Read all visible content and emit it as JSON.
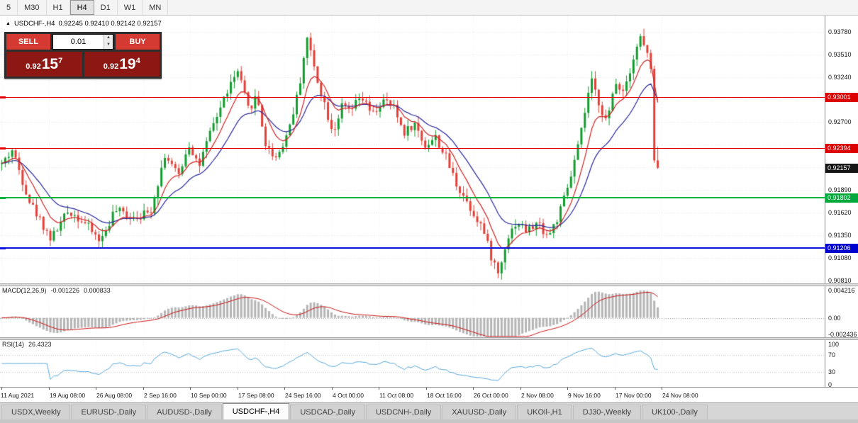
{
  "toolbar": {
    "timeframes": [
      "5",
      "M30",
      "H1",
      "H4",
      "D1",
      "W1",
      "MN"
    ],
    "active": "H4"
  },
  "chart": {
    "title_symbol": "USDCHF-,H4",
    "title_ohlc": "0.92245 0.92410 0.92142 0.92157"
  },
  "trade_panel": {
    "sell_label": "SELL",
    "buy_label": "BUY",
    "volume": "0.01",
    "sell_price": {
      "small": "0.92",
      "big": "15",
      "sup": "7"
    },
    "buy_price": {
      "small": "0.92",
      "big": "19",
      "sup": "4"
    }
  },
  "price_axis": {
    "grid_prices": [
      0.9378,
      0.9351,
      0.9324,
      0.9297,
      0.927,
      0.9243,
      0.9216,
      0.9189,
      0.9162,
      0.9135,
      0.9108,
      0.9081
    ],
    "ticks": [
      {
        "label": "0.93780",
        "price": 0.9378
      },
      {
        "label": "0.93510",
        "price": 0.9351
      },
      {
        "label": "0.93240",
        "price": 0.9324
      },
      {
        "label": "0.92700",
        "price": 0.927
      },
      {
        "label": "0.91890",
        "price": 0.9189
      },
      {
        "label": "0.91620",
        "price": 0.9162
      },
      {
        "label": "0.91350",
        "price": 0.9135
      },
      {
        "label": "0.91080",
        "price": 0.9108
      },
      {
        "label": "0.90810",
        "price": 0.9081
      }
    ],
    "badges": [
      {
        "label": "0.93001",
        "price": 0.93001,
        "bg": "#dd0000"
      },
      {
        "label": "0.92394",
        "price": 0.92394,
        "bg": "#dd0000"
      },
      {
        "label": "0.92157",
        "price": 0.92157,
        "bg": "#161616"
      },
      {
        "label": "0.91802",
        "price": 0.91802,
        "bg": "#00a93c"
      },
      {
        "label": "0.91206",
        "price": 0.91206,
        "bg": "#0000cf"
      }
    ]
  },
  "hlines": [
    {
      "price": 0.93001,
      "color": "#e60000",
      "thickness": 1
    },
    {
      "price": 0.92394,
      "color": "#e60000",
      "thickness": 1
    },
    {
      "price": 0.91802,
      "color": "#00b33c",
      "thickness": 2
    },
    {
      "price": 0.91206,
      "color": "#0f0fe0",
      "thickness": 2
    }
  ],
  "time_axis": [
    "11 Aug 2021",
    "19 Aug 08:00",
    "26 Aug 08:00",
    "2 Sep 16:00",
    "10 Sep 00:00",
    "17 Sep 08:00",
    "24 Sep 16:00",
    "4 Oct 00:00",
    "11 Oct 08:00",
    "18 Oct 16:00",
    "26 Oct 00:00",
    "2 Nov 08:00",
    "9 Nov 16:00",
    "17 Nov 00:00",
    "24 Nov 08:00"
  ],
  "macd": {
    "label": "MACD(12,26,9)",
    "value1": "-0.001226",
    "value2": "0.000833",
    "axis": [
      {
        "label": "0.004216",
        "value": 0.004216
      },
      {
        "label": "0.00",
        "value": 0
      },
      {
        "label": "-0.002436",
        "value": -0.002436
      }
    ],
    "range": {
      "min": -0.002436,
      "max": 0.004216
    }
  },
  "rsi": {
    "label": "RSI(14)",
    "value": "26.4323",
    "axis": [
      {
        "label": "100",
        "value": 100
      },
      {
        "label": "70",
        "value": 70
      },
      {
        "label": "30",
        "value": 30
      },
      {
        "label": "0",
        "value": 0
      }
    ],
    "levels": [
      70,
      30
    ]
  },
  "tabs": [
    {
      "label": "USDX,Weekly",
      "active": false
    },
    {
      "label": "EURUSD-,Daily",
      "active": false
    },
    {
      "label": "AUDUSD-,Daily",
      "active": false
    },
    {
      "label": "USDCHF-,H4",
      "active": true
    },
    {
      "label": "USDCAD-,Daily",
      "active": false
    },
    {
      "label": "USDCNH-,Daily",
      "active": false
    },
    {
      "label": "XAUUSD-,Daily",
      "active": false
    },
    {
      "label": "UKOil-,H1",
      "active": false
    },
    {
      "label": "DJ30-,Weekly",
      "active": false
    },
    {
      "label": "UK100-,Daily",
      "active": false
    }
  ],
  "colors": {
    "bull": "#129b2e",
    "bear": "#e04038",
    "ma_fast": "#cf2222",
    "ma_slow": "#26269c",
    "macd_hist": "#b4b4b4",
    "macd_signal": "#cc1111",
    "rsi_line": "#58a7da",
    "grid": "#e2e2e2",
    "vgrid": "#ededed"
  },
  "chart_data": {
    "type": "candlestick",
    "symbol": "USDCHF-",
    "timeframe": "H4",
    "ohlc_current": {
      "open": 0.92245,
      "high": 0.9241,
      "low": 0.92142,
      "close": 0.92157
    },
    "price_range": {
      "min": 0.9078,
      "max": 0.9397
    },
    "candle_count": 190,
    "waypoints": [
      [
        0,
        0.922
      ],
      [
        0.016,
        0.9237
      ],
      [
        0.043,
        0.9175
      ],
      [
        0.075,
        0.9131
      ],
      [
        0.102,
        0.9165
      ],
      [
        0.124,
        0.9152
      ],
      [
        0.151,
        0.9128
      ],
      [
        0.172,
        0.9165
      ],
      [
        0.199,
        0.9158
      ],
      [
        0.226,
        0.9162
      ],
      [
        0.249,
        0.9232
      ],
      [
        0.269,
        0.9205
      ],
      [
        0.285,
        0.9245
      ],
      [
        0.301,
        0.9218
      ],
      [
        0.323,
        0.9268
      ],
      [
        0.344,
        0.9308
      ],
      [
        0.36,
        0.933
      ],
      [
        0.376,
        0.9285
      ],
      [
        0.389,
        0.9302
      ],
      [
        0.403,
        0.924
      ],
      [
        0.419,
        0.9228
      ],
      [
        0.435,
        0.9256
      ],
      [
        0.452,
        0.9305
      ],
      [
        0.465,
        0.9372
      ],
      [
        0.478,
        0.933
      ],
      [
        0.489,
        0.93
      ],
      [
        0.505,
        0.9258
      ],
      [
        0.518,
        0.9288
      ],
      [
        0.532,
        0.9283
      ],
      [
        0.548,
        0.93
      ],
      [
        0.565,
        0.9278
      ],
      [
        0.581,
        0.9295
      ],
      [
        0.597,
        0.9288
      ],
      [
        0.613,
        0.9258
      ],
      [
        0.629,
        0.9268
      ],
      [
        0.645,
        0.9242
      ],
      [
        0.661,
        0.9252
      ],
      [
        0.677,
        0.9228
      ],
      [
        0.694,
        0.9195
      ],
      [
        0.704,
        0.9183
      ],
      [
        0.718,
        0.9163
      ],
      [
        0.731,
        0.9148
      ],
      [
        0.747,
        0.9108
      ],
      [
        0.758,
        0.9088
      ],
      [
        0.769,
        0.913
      ],
      [
        0.785,
        0.9152
      ],
      [
        0.801,
        0.914
      ],
      [
        0.817,
        0.915
      ],
      [
        0.833,
        0.9134
      ],
      [
        0.849,
        0.9158
      ],
      [
        0.866,
        0.92
      ],
      [
        0.882,
        0.9252
      ],
      [
        0.898,
        0.932
      ],
      [
        0.909,
        0.9296
      ],
      [
        0.923,
        0.9268
      ],
      [
        0.935,
        0.9318
      ],
      [
        0.948,
        0.9308
      ],
      [
        0.962,
        0.9345
      ],
      [
        0.973,
        0.9372
      ],
      [
        0.984,
        0.9352
      ],
      [
        0.992,
        0.932
      ],
      [
        1,
        0.9216
      ]
    ]
  }
}
